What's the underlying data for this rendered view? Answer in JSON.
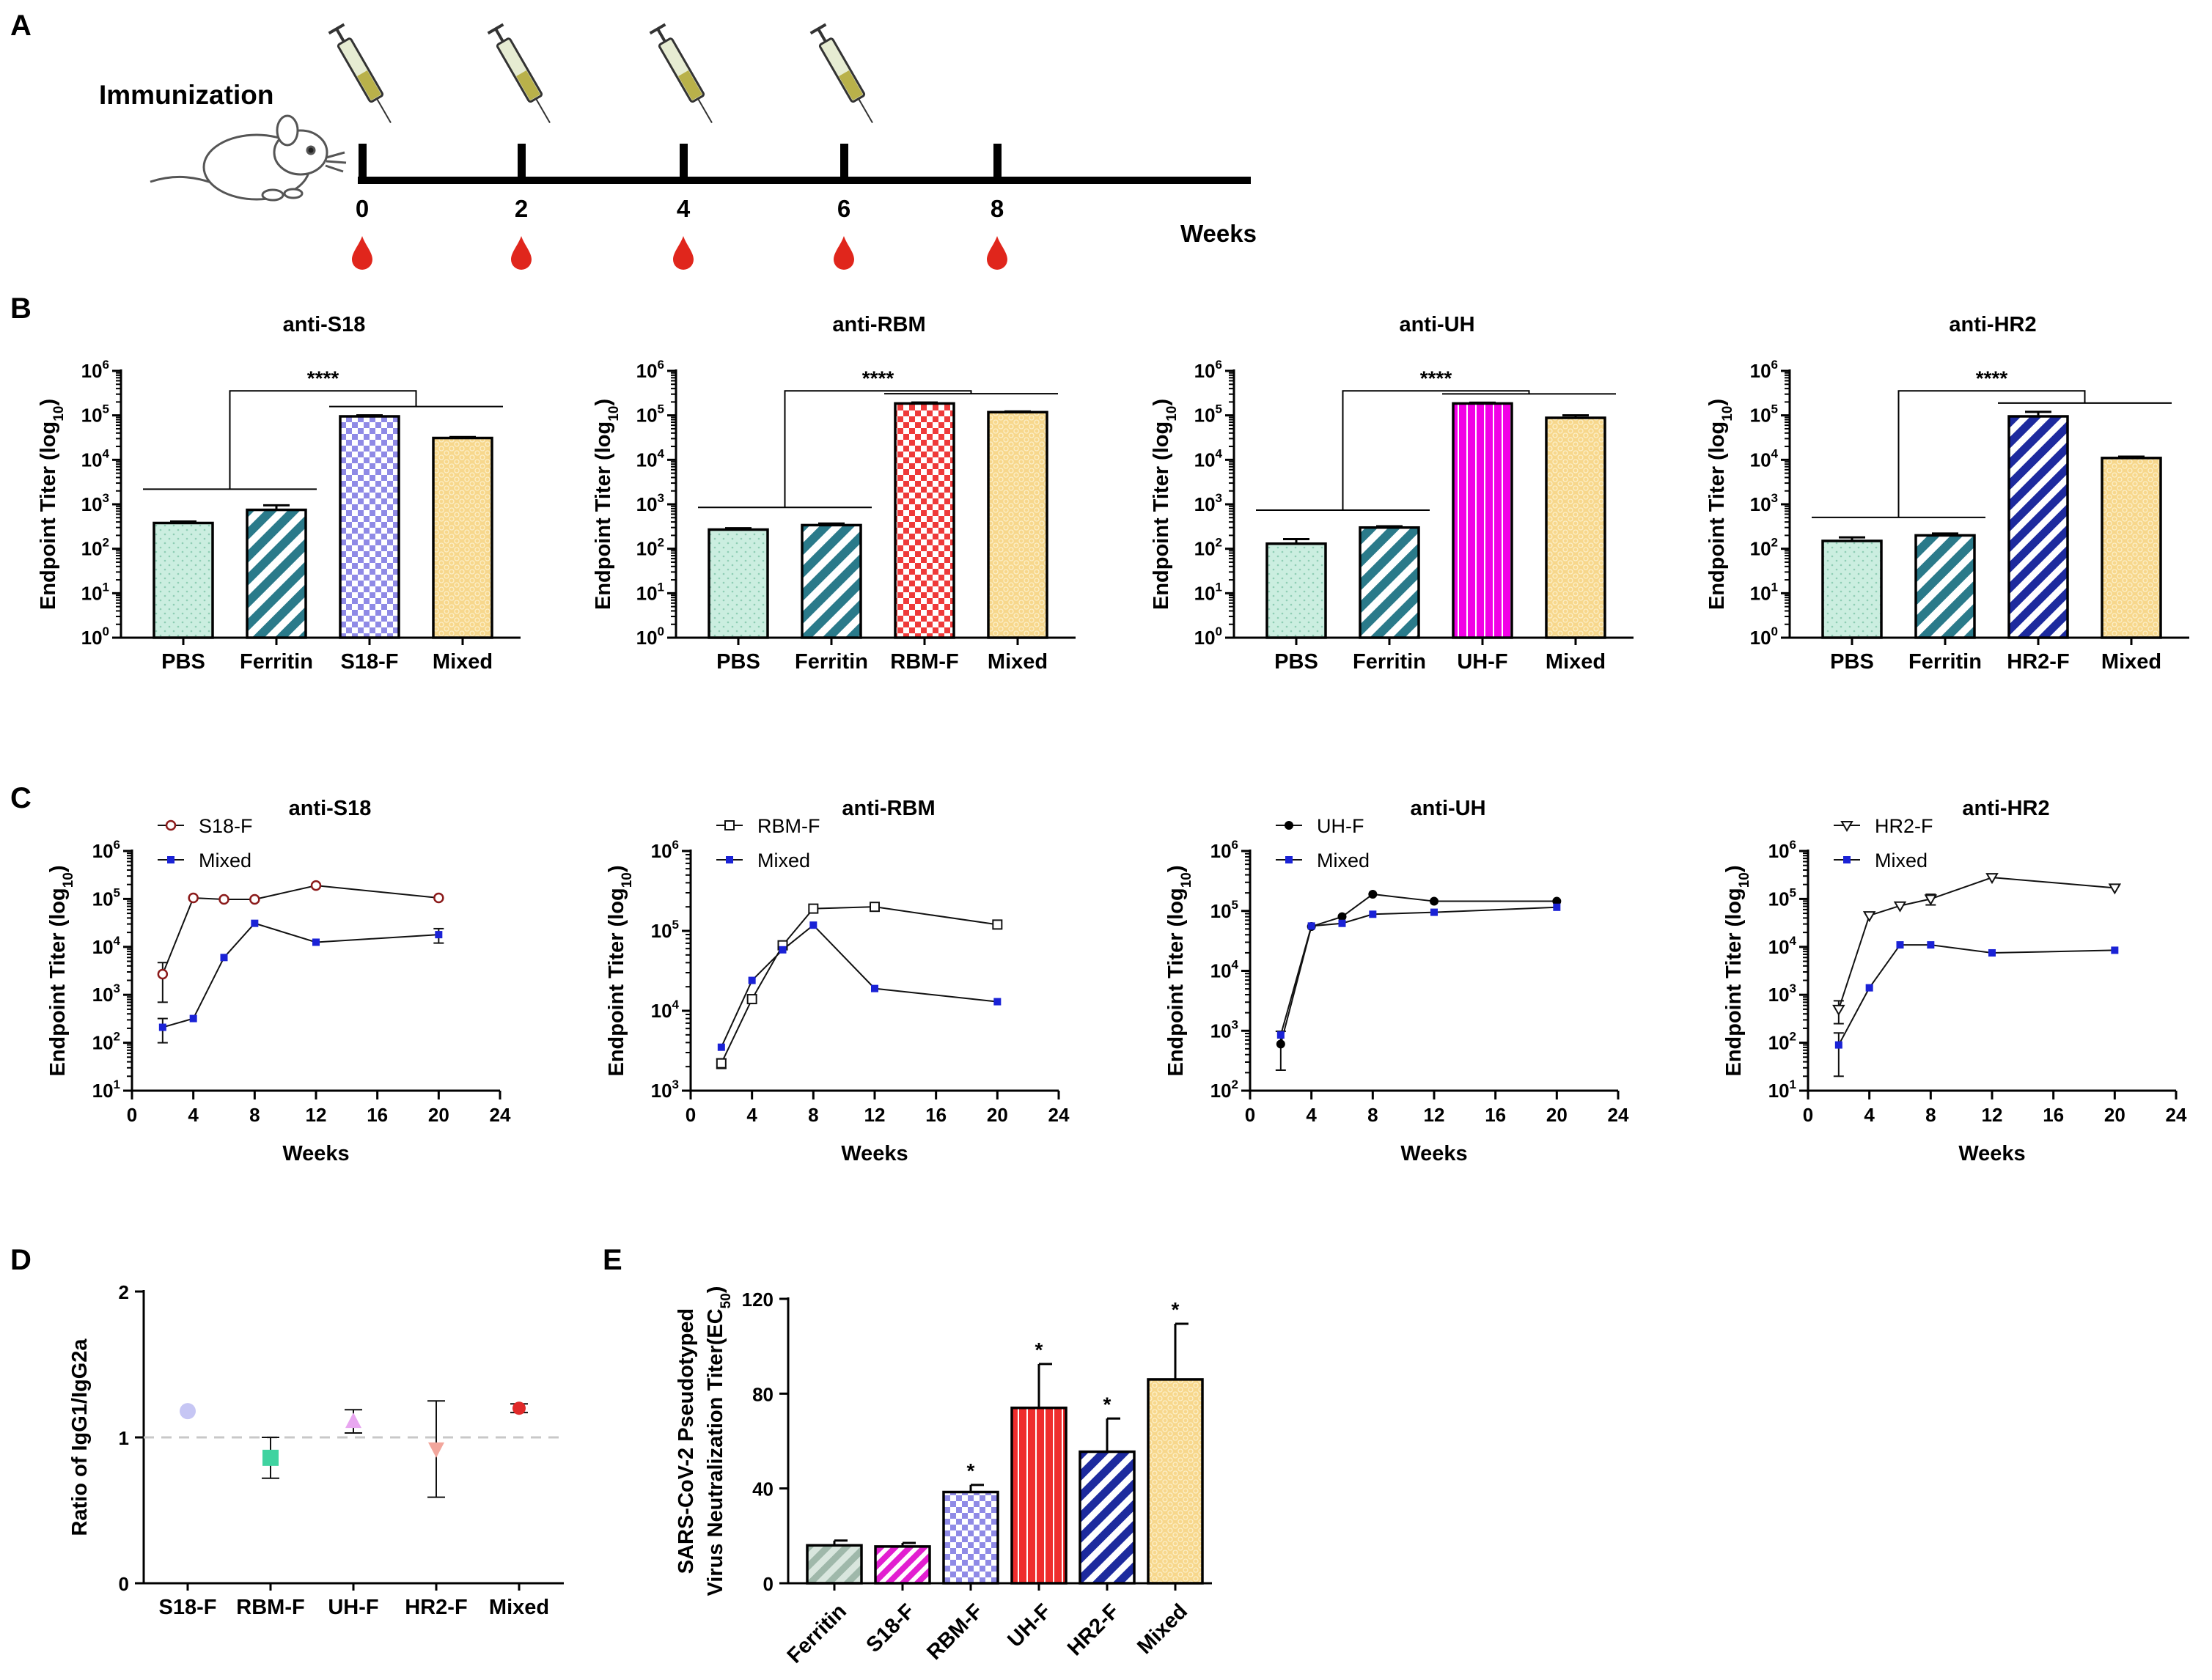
{
  "panels": {
    "a": {
      "label": "A",
      "immunization_label": "Immunization",
      "weeks_label": "Weeks",
      "timepoints": [
        "0",
        "2",
        "4",
        "6",
        "8"
      ],
      "injection_weeks": [
        "0",
        "2",
        "4",
        "6"
      ],
      "bleed_weeks": [
        "0",
        "2",
        "4",
        "6",
        "8"
      ]
    },
    "b": {
      "label": "B"
    },
    "c": {
      "label": "C"
    },
    "d": {
      "label": "D"
    },
    "e": {
      "label": "E"
    }
  },
  "chart_data": [
    {
      "id": "B1",
      "panel": "B",
      "type": "bar",
      "scale": "log",
      "title": "anti-S18",
      "ylabel": "Endpoint Titer (log",
      "ylabel_sub": "10",
      "ylabel_end": ")",
      "ylim_exp": [
        0,
        6
      ],
      "categories": [
        "PBS",
        "Ferritin",
        "S18-F",
        "Mixed"
      ],
      "values": [
        380,
        750,
        95000,
        31000
      ],
      "errors": [
        30,
        200,
        5000,
        1500
      ],
      "patterns": [
        "dots-mint",
        "diag-teal",
        "check-purple",
        "honey-yellow"
      ],
      "significance": "****"
    },
    {
      "id": "B2",
      "panel": "B",
      "type": "bar",
      "scale": "log",
      "title": "anti-RBM",
      "ylabel": "Endpoint Titer (log",
      "ylabel_sub": "10",
      "ylabel_end": ")",
      "ylim_exp": [
        0,
        6
      ],
      "categories": [
        "PBS",
        "Ferritin",
        "RBM-F",
        "Mixed"
      ],
      "values": [
        270,
        340,
        185000,
        118000
      ],
      "errors": [
        20,
        30,
        10000,
        4000
      ],
      "patterns": [
        "dots-mint",
        "diag-teal",
        "check-red",
        "honey-yellow"
      ],
      "significance": "****"
    },
    {
      "id": "B3",
      "panel": "B",
      "type": "bar",
      "scale": "log",
      "title": "anti-UH",
      "ylabel": "Endpoint Titer (log",
      "ylabel_sub": "10",
      "ylabel_end": ")",
      "ylim_exp": [
        0,
        6
      ],
      "categories": [
        "PBS",
        "Ferritin",
        "UH-F",
        "Mixed"
      ],
      "values": [
        130,
        300,
        185000,
        88000
      ],
      "errors": [
        35,
        20,
        8000,
        12000
      ],
      "patterns": [
        "dots-mint",
        "diag-teal",
        "vstripe-magenta",
        "honey-yellow"
      ],
      "significance": "****"
    },
    {
      "id": "B4",
      "panel": "B",
      "type": "bar",
      "scale": "log",
      "title": "anti-HR2",
      "ylabel": "Endpoint Titer (log",
      "ylabel_sub": "10",
      "ylabel_end": ")",
      "ylim_exp": [
        0,
        6
      ],
      "categories": [
        "PBS",
        "Ferritin",
        "HR2-F",
        "Mixed"
      ],
      "values": [
        150,
        200,
        95000,
        11000
      ],
      "errors": [
        30,
        20,
        25000,
        800
      ],
      "patterns": [
        "dots-mint",
        "diag-teal",
        "diag-navy",
        "honey-yellow"
      ],
      "significance": "****"
    },
    {
      "id": "C1",
      "panel": "C",
      "type": "line",
      "scale": "log",
      "title": "anti-S18",
      "xlabel": "Weeks",
      "ylabel": "Endpoint Titer (log",
      "ylabel_sub": "10",
      "ylabel_end": ")",
      "xlim": [
        0,
        24
      ],
      "xticks": [
        0,
        4,
        8,
        12,
        16,
        20,
        24
      ],
      "ylim_exp": [
        1,
        6
      ],
      "series": [
        {
          "name": "S18-F",
          "marker": "circle-open-red",
          "x": [
            2,
            4,
            6,
            8,
            12,
            20
          ],
          "values": [
            2700,
            105000,
            98000,
            98000,
            190000,
            105000
          ],
          "errors": [
            2000,
            0,
            0,
            0,
            0,
            0
          ]
        },
        {
          "name": "Mixed",
          "marker": "square-blue",
          "x": [
            2,
            4,
            6,
            8,
            12,
            20
          ],
          "values": [
            210,
            320,
            6000,
            31000,
            12500,
            18000
          ],
          "errors": [
            110,
            0,
            0,
            0,
            0,
            6000
          ]
        }
      ]
    },
    {
      "id": "C2",
      "panel": "C",
      "type": "line",
      "scale": "log",
      "title": "anti-RBM",
      "xlabel": "Weeks",
      "ylabel": "Endpoint Titer (log",
      "ylabel_sub": "10",
      "ylabel_end": ")",
      "xlim": [
        0,
        24
      ],
      "xticks": [
        0,
        4,
        8,
        12,
        16,
        20,
        24
      ],
      "ylim_exp": [
        3,
        6
      ],
      "series": [
        {
          "name": "RBM-F",
          "marker": "square-open",
          "x": [
            2,
            4,
            6,
            8,
            12,
            20
          ],
          "values": [
            2200,
            14000,
            66000,
            190000,
            200000,
            120000
          ],
          "errors": [
            300,
            0,
            0,
            0,
            0,
            0
          ]
        },
        {
          "name": "Mixed",
          "marker": "square-blue",
          "x": [
            2,
            4,
            6,
            8,
            12,
            20
          ],
          "values": [
            3500,
            24000,
            58000,
            118000,
            19000,
            13000
          ],
          "errors": [
            0,
            0,
            0,
            0,
            0,
            0
          ]
        }
      ]
    },
    {
      "id": "C3",
      "panel": "C",
      "type": "line",
      "scale": "log",
      "title": "anti-UH",
      "xlabel": "Weeks",
      "ylabel": "Endpoint Titer (log",
      "ylabel_sub": "10",
      "ylabel_end": ")",
      "xlim": [
        0,
        24
      ],
      "xticks": [
        0,
        4,
        8,
        12,
        16,
        20,
        24
      ],
      "ylim_exp": [
        2,
        6
      ],
      "series": [
        {
          "name": "UH-F",
          "marker": "circle-black",
          "x": [
            2,
            4,
            6,
            8,
            12,
            20
          ],
          "values": [
            600,
            55000,
            80000,
            190000,
            145000,
            145000
          ],
          "errors": [
            380,
            0,
            0,
            0,
            0,
            0
          ]
        },
        {
          "name": "Mixed",
          "marker": "square-blue",
          "x": [
            2,
            4,
            6,
            8,
            12,
            20
          ],
          "values": [
            850,
            56000,
            62000,
            88000,
            95000,
            115000
          ],
          "errors": [
            0,
            0,
            0,
            0,
            0,
            0
          ]
        }
      ]
    },
    {
      "id": "C4",
      "panel": "C",
      "type": "line",
      "scale": "log",
      "title": "anti-HR2",
      "xlabel": "Weeks",
      "ylabel": "Endpoint Titer (log",
      "ylabel_sub": "10",
      "ylabel_end": ")",
      "xlim": [
        0,
        24
      ],
      "xticks": [
        0,
        4,
        8,
        12,
        16,
        20,
        24
      ],
      "ylim_exp": [
        1,
        6
      ],
      "series": [
        {
          "name": "HR2-F",
          "marker": "triangle-down-open",
          "x": [
            2,
            4,
            6,
            8,
            12,
            20
          ],
          "values": [
            500,
            45000,
            72000,
            100000,
            280000,
            170000
          ],
          "errors": [
            250,
            0,
            0,
            25000,
            0,
            0
          ]
        },
        {
          "name": "Mixed",
          "marker": "square-blue",
          "x": [
            2,
            4,
            6,
            8,
            12,
            20
          ],
          "values": [
            90,
            1400,
            11000,
            11000,
            7500,
            8500
          ],
          "errors": [
            70,
            0,
            0,
            0,
            0,
            0
          ]
        }
      ]
    },
    {
      "id": "D",
      "panel": "D",
      "type": "scatter",
      "ylabel": "Ratio of IgG1/IgG2a",
      "ylim": [
        0,
        2
      ],
      "yticks": [
        0,
        1,
        2
      ],
      "reference_line": 1,
      "categories": [
        "S18-F",
        "RBM-F",
        "UH-F",
        "HR2-F",
        "Mixed"
      ],
      "values": [
        1.18,
        0.86,
        1.11,
        0.92,
        1.2
      ],
      "errors": [
        0,
        0.14,
        0.08,
        0.33,
        0.03
      ],
      "markers": [
        "circle-lavender",
        "square-mint",
        "triangle-up-pink",
        "triangle-down-salmon",
        "diamond-red"
      ]
    },
    {
      "id": "E",
      "panel": "E",
      "type": "bar",
      "ylabel": "SARS-CoV-2 Pseudotyped",
      "ylabel_line2": "Virus Neutralization Titer(EC",
      "ylabel_sub": "50",
      "ylabel_end": ")",
      "ylim": [
        0,
        120
      ],
      "yticks": [
        0,
        40,
        80,
        120
      ],
      "categories": [
        "Ferritin",
        "S18-F",
        "RBM-F",
        "UH-F",
        "HR2-F",
        "Mixed"
      ],
      "values": [
        16,
        15.5,
        38.5,
        74,
        55.5,
        86
      ],
      "errors": [
        2,
        1.5,
        3,
        18.5,
        14,
        23.5
      ],
      "patterns": [
        "diag-sage",
        "diag-magenta",
        "check-purple",
        "vstripe-red",
        "diag-navy",
        "honey-yellow"
      ],
      "significance": [
        "",
        "",
        "*",
        "*",
        "*",
        "*"
      ]
    }
  ]
}
